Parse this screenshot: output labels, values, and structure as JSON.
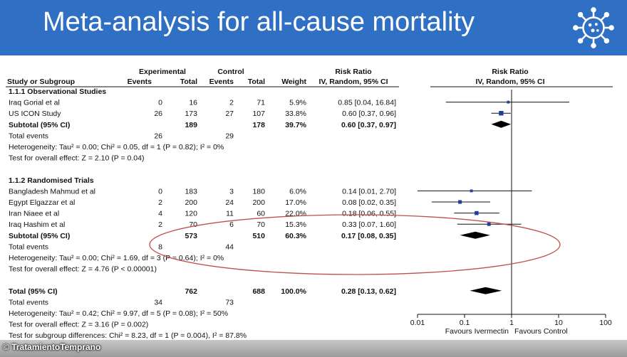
{
  "title": "Meta-analysis for all-cause mortality",
  "credit": "© TratamientoTemprano",
  "colors": {
    "banner": "#2f6fc4",
    "square": "#1f3f9f",
    "diamond": "#000000",
    "ellipse": "#c0504d"
  },
  "icons": {
    "banner_icon": "virus-icon"
  },
  "headers": {
    "study": "Study or Subgroup",
    "experimental": "Experimental",
    "control": "Control",
    "events": "Events",
    "total": "Total",
    "weight": "Weight",
    "rr": "Risk Ratio",
    "rr_sub": "IV, Random, 95% CI",
    "plot_rr": "Risk Ratio",
    "plot_rr_sub": "IV, Random, 95% CI"
  },
  "rows": [
    {
      "kind": "group",
      "label": "1.1.1 Observational Studies"
    },
    {
      "kind": "study",
      "label": "Iraq Gorial et al",
      "e_ev": "0",
      "e_tot": "16",
      "c_ev": "2",
      "c_tot": "71",
      "weight": "5.9%",
      "rr": "0.85 [0.04, 16.84]",
      "est": 0.85,
      "lo": 0.04,
      "hi": 16.84,
      "w": 5.9
    },
    {
      "kind": "study",
      "label": "US ICON Study",
      "e_ev": "26",
      "e_tot": "173",
      "c_ev": "27",
      "c_tot": "107",
      "weight": "33.8%",
      "rr": "0.60 [0.37, 0.96]",
      "est": 0.6,
      "lo": 0.37,
      "hi": 0.96,
      "w": 33.8
    },
    {
      "kind": "subtotal",
      "label": "Subtotal (95% CI)",
      "e_tot": "189",
      "c_tot": "178",
      "weight": "39.7%",
      "rr": "0.60 [0.37, 0.97]",
      "est": 0.6,
      "lo": 0.37,
      "hi": 0.97
    },
    {
      "kind": "events",
      "label": "Total events",
      "e_ev": "26",
      "c_ev": "29"
    },
    {
      "kind": "text",
      "label": "Heterogeneity: Tau² = 0.00; Chi² = 0.05, df = 1 (P = 0.82); I² = 0%"
    },
    {
      "kind": "text",
      "label": "Test for overall effect: Z = 2.10 (P = 0.04)"
    },
    {
      "kind": "blank"
    },
    {
      "kind": "group",
      "label": "1.1.2 Randomised Trials"
    },
    {
      "kind": "study",
      "label": "Bangladesh Mahmud et al",
      "e_ev": "0",
      "e_tot": "183",
      "c_ev": "3",
      "c_tot": "180",
      "weight": "6.0%",
      "rr": "0.14 [0.01, 2.70]",
      "est": 0.14,
      "lo": 0.01,
      "hi": 2.7,
      "w": 6.0
    },
    {
      "kind": "study",
      "label": "Egypt Elgazzar et al",
      "e_ev": "2",
      "e_tot": "200",
      "c_ev": "24",
      "c_tot": "200",
      "weight": "17.0%",
      "rr": "0.08 [0.02, 0.35]",
      "est": 0.08,
      "lo": 0.02,
      "hi": 0.35,
      "w": 17.0
    },
    {
      "kind": "study",
      "label": "Iran Niaee et al",
      "e_ev": "4",
      "e_tot": "120",
      "c_ev": "11",
      "c_tot": "60",
      "weight": "22.0%",
      "rr": "0.18 [0.06, 0.55]",
      "est": 0.18,
      "lo": 0.06,
      "hi": 0.55,
      "w": 22.0
    },
    {
      "kind": "study",
      "label": "Iraq Hashim et al",
      "e_ev": "2",
      "e_tot": "70",
      "c_ev": "6",
      "c_tot": "70",
      "weight": "15.3%",
      "rr": "0.33 [0.07, 1.60]",
      "est": 0.33,
      "lo": 0.07,
      "hi": 1.6,
      "w": 15.3
    },
    {
      "kind": "subtotal",
      "label": "Subtotal (95% CI)",
      "e_tot": "573",
      "c_tot": "510",
      "weight": "60.3%",
      "rr": "0.17 [0.08, 0.35]",
      "est": 0.17,
      "lo": 0.08,
      "hi": 0.35
    },
    {
      "kind": "events",
      "label": "Total events",
      "e_ev": "8",
      "c_ev": "44"
    },
    {
      "kind": "text",
      "label": "Heterogeneity: Tau² = 0.00; Chi² = 1.69, df = 3 (P = 0.64); I² = 0%"
    },
    {
      "kind": "text",
      "label": "Test for overall effect: Z = 4.76 (P < 0.00001)"
    },
    {
      "kind": "blank"
    },
    {
      "kind": "subtotal",
      "label": "Total (95% CI)",
      "e_tot": "762",
      "c_tot": "688",
      "weight": "100.0%",
      "rr": "0.28 [0.13, 0.62]",
      "est": 0.28,
      "lo": 0.13,
      "hi": 0.62
    },
    {
      "kind": "events",
      "label": "Total events",
      "e_ev": "34",
      "c_ev": "73"
    },
    {
      "kind": "text",
      "label": "Heterogeneity: Tau² = 0.42; Chi² = 9.97, df = 5 (P = 0.08); I² = 50%"
    },
    {
      "kind": "text",
      "label": "Test for overall effect: Z = 3.16 (P = 0.002)"
    },
    {
      "kind": "text",
      "label": "Test for subgroup differences: Chi² = 8.23, df = 1 (P = 0.004), I² = 87.8%"
    }
  ],
  "chart_data": {
    "type": "forest",
    "title": "Meta-analysis for all-cause mortality",
    "xscale": "log",
    "xlim": [
      0.01,
      100
    ],
    "xticks": [
      "0.01",
      "0.1",
      "1",
      "10",
      "100"
    ],
    "xtick_values": [
      0.01,
      0.1,
      1,
      10,
      100
    ],
    "xlabel_left": "Favours Ivermectin",
    "xlabel_right": "Favours Control",
    "reference_line": 1
  }
}
